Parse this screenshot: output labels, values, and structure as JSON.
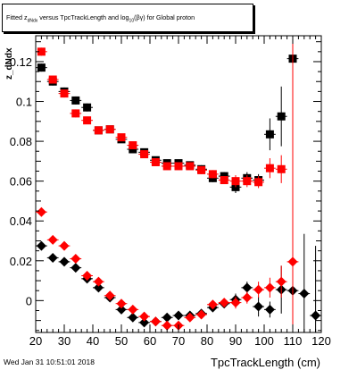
{
  "title": {
    "pre": "Fitted  z",
    "sub1": "dNdx",
    "mid": " versus TpcTrackLength and log",
    "sub2": "10",
    "post": "(βγ) for Global proton"
  },
  "timestamp": "Wed Jan 31 10:51:01 2018",
  "chart_data": {
    "type": "scatter",
    "title": "Fitted z_dNdx versus TpcTrackLength and log10(βγ) for Global proton",
    "xlabel": "TpcTrackLength (cm)",
    "ylabel": "z_dNdx",
    "xlim": [
      20,
      120
    ],
    "ylim": [
      -0.016,
      0.133
    ],
    "x_ticks": [
      "20",
      "30",
      "40",
      "50",
      "60",
      "70",
      "80",
      "90",
      "100",
      "110",
      "120"
    ],
    "y_ticks": [
      "0",
      "0.02",
      "0.04",
      "0.06",
      "0.08",
      "0.1",
      "0.12"
    ],
    "series": [
      {
        "marker": "square",
        "color": "#000000",
        "points": [
          {
            "x": 22,
            "y": 0.117,
            "e": 0.002
          },
          {
            "x": 26,
            "y": 0.11,
            "e": 0.002
          },
          {
            "x": 30,
            "y": 0.105,
            "e": 0.002
          },
          {
            "x": 34,
            "y": 0.1005,
            "e": 0.002
          },
          {
            "x": 38,
            "y": 0.097,
            "e": 0.002
          },
          {
            "x": 42,
            "y": 0.0855,
            "e": 0.0015
          },
          {
            "x": 46,
            "y": 0.086,
            "e": 0.0015
          },
          {
            "x": 50,
            "y": 0.081,
            "e": 0.0015
          },
          {
            "x": 54,
            "y": 0.076,
            "e": 0.0015
          },
          {
            "x": 58,
            "y": 0.0745,
            "e": 0.0015
          },
          {
            "x": 62,
            "y": 0.0705,
            "e": 0.0015
          },
          {
            "x": 66,
            "y": 0.069,
            "e": 0.0015
          },
          {
            "x": 70,
            "y": 0.069,
            "e": 0.0015
          },
          {
            "x": 74,
            "y": 0.068,
            "e": 0.0015
          },
          {
            "x": 78,
            "y": 0.066,
            "e": 0.002
          },
          {
            "x": 82,
            "y": 0.0615,
            "e": 0.002
          },
          {
            "x": 86,
            "y": 0.0625,
            "e": 0.002
          },
          {
            "x": 90,
            "y": 0.057,
            "e": 0.003
          },
          {
            "x": 94,
            "y": 0.0615,
            "e": 0.003
          },
          {
            "x": 98,
            "y": 0.0605,
            "e": 0.003
          },
          {
            "x": 102,
            "y": 0.0835,
            "e": 0.008
          },
          {
            "x": 106,
            "y": 0.0925,
            "e": 0.015
          },
          {
            "x": 110,
            "y": 0.1215,
            "e": 0.03
          }
        ]
      },
      {
        "marker": "square",
        "color": "#ff0000",
        "points": [
          {
            "x": 22,
            "y": 0.125,
            "e": 0.002
          },
          {
            "x": 26,
            "y": 0.111,
            "e": 0.002
          },
          {
            "x": 30,
            "y": 0.104,
            "e": 0.002
          },
          {
            "x": 34,
            "y": 0.094,
            "e": 0.002
          },
          {
            "x": 38,
            "y": 0.0905,
            "e": 0.0015
          },
          {
            "x": 42,
            "y": 0.0855,
            "e": 0.0015
          },
          {
            "x": 46,
            "y": 0.086,
            "e": 0.0015
          },
          {
            "x": 50,
            "y": 0.082,
            "e": 0.0015
          },
          {
            "x": 54,
            "y": 0.078,
            "e": 0.0015
          },
          {
            "x": 58,
            "y": 0.0735,
            "e": 0.0015
          },
          {
            "x": 62,
            "y": 0.0695,
            "e": 0.0015
          },
          {
            "x": 66,
            "y": 0.0675,
            "e": 0.0015
          },
          {
            "x": 70,
            "y": 0.0675,
            "e": 0.0015
          },
          {
            "x": 74,
            "y": 0.0675,
            "e": 0.0015
          },
          {
            "x": 78,
            "y": 0.0655,
            "e": 0.002
          },
          {
            "x": 82,
            "y": 0.0635,
            "e": 0.002
          },
          {
            "x": 86,
            "y": 0.0605,
            "e": 0.002
          },
          {
            "x": 90,
            "y": 0.06,
            "e": 0.003
          },
          {
            "x": 94,
            "y": 0.06,
            "e": 0.003
          },
          {
            "x": 98,
            "y": 0.0595,
            "e": 0.003
          },
          {
            "x": 102,
            "y": 0.0665,
            "e": 0.005
          },
          {
            "x": 106,
            "y": 0.066,
            "e": 0.007
          }
        ]
      },
      {
        "marker": "diamond",
        "color": "#000000",
        "points": [
          {
            "x": 22,
            "y": 0.0275,
            "e": 0.0015
          },
          {
            "x": 26,
            "y": 0.0215,
            "e": 0.0015
          },
          {
            "x": 30,
            "y": 0.0195,
            "e": 0.0015
          },
          {
            "x": 34,
            "y": 0.0165,
            "e": 0.0015
          },
          {
            "x": 38,
            "y": 0.011,
            "e": 0.0015
          },
          {
            "x": 42,
            "y": 0.0065,
            "e": 0.0015
          },
          {
            "x": 46,
            "y": 0.0015,
            "e": 0.0015
          },
          {
            "x": 50,
            "y": -0.0045,
            "e": 0.0015
          },
          {
            "x": 54,
            "y": -0.0085,
            "e": 0.0015
          },
          {
            "x": 58,
            "y": -0.011,
            "e": 0.0015
          },
          {
            "x": 62,
            "y": -0.0105,
            "e": 0.0015
          },
          {
            "x": 66,
            "y": -0.0085,
            "e": 0.0015
          },
          {
            "x": 70,
            "y": -0.0075,
            "e": 0.0015
          },
          {
            "x": 74,
            "y": -0.0075,
            "e": 0.0015
          },
          {
            "x": 78,
            "y": -0.0065,
            "e": 0.0015
          },
          {
            "x": 82,
            "y": -0.0035,
            "e": 0.002
          },
          {
            "x": 86,
            "y": -0.0015,
            "e": 0.002
          },
          {
            "x": 90,
            "y": 0.0005,
            "e": 0.003
          },
          {
            "x": 94,
            "y": 0.0065,
            "e": 0.003
          },
          {
            "x": 98,
            "y": -0.003,
            "e": 0.005
          },
          {
            "x": 102,
            "y": -0.0045,
            "e": 0.004
          },
          {
            "x": 106,
            "y": 0.0055,
            "e": 0.012
          },
          {
            "x": 110,
            "y": 0.005,
            "e": 0.018
          },
          {
            "x": 114,
            "y": 0.0035,
            "e": 0.03
          },
          {
            "x": 118,
            "y": -0.0075,
            "e": 0.035
          }
        ]
      },
      {
        "marker": "diamond",
        "color": "#ff0000",
        "points": [
          {
            "x": 22,
            "y": 0.0445,
            "e": 0.0015
          },
          {
            "x": 26,
            "y": 0.0305,
            "e": 0.0015
          },
          {
            "x": 30,
            "y": 0.0275,
            "e": 0.0015
          },
          {
            "x": 34,
            "y": 0.021,
            "e": 0.0015
          },
          {
            "x": 38,
            "y": 0.0125,
            "e": 0.0015
          },
          {
            "x": 42,
            "y": 0.0095,
            "e": 0.0015
          },
          {
            "x": 46,
            "y": 0.0025,
            "e": 0.0015
          },
          {
            "x": 50,
            "y": -0.0015,
            "e": 0.0015
          },
          {
            "x": 54,
            "y": -0.0045,
            "e": 0.0015
          },
          {
            "x": 58,
            "y": -0.008,
            "e": 0.0015
          },
          {
            "x": 62,
            "y": -0.0105,
            "e": 0.0015
          },
          {
            "x": 66,
            "y": -0.0125,
            "e": 0.0015
          },
          {
            "x": 70,
            "y": -0.0125,
            "e": 0.0015
          },
          {
            "x": 74,
            "y": -0.0085,
            "e": 0.0015
          },
          {
            "x": 78,
            "y": -0.007,
            "e": 0.002
          },
          {
            "x": 82,
            "y": -0.002,
            "e": 0.002
          },
          {
            "x": 86,
            "y": -0.001,
            "e": 0.002
          },
          {
            "x": 90,
            "y": -0.001,
            "e": 0.003
          },
          {
            "x": 94,
            "y": 0.0015,
            "e": 0.003
          },
          {
            "x": 98,
            "y": 0.0055,
            "e": 0.004
          },
          {
            "x": 102,
            "y": 0.0065,
            "e": 0.005
          },
          {
            "x": 106,
            "y": 0.0095,
            "e": 0.008
          },
          {
            "x": 110,
            "y": 0.0195,
            "e": 0.2
          }
        ]
      }
    ]
  }
}
